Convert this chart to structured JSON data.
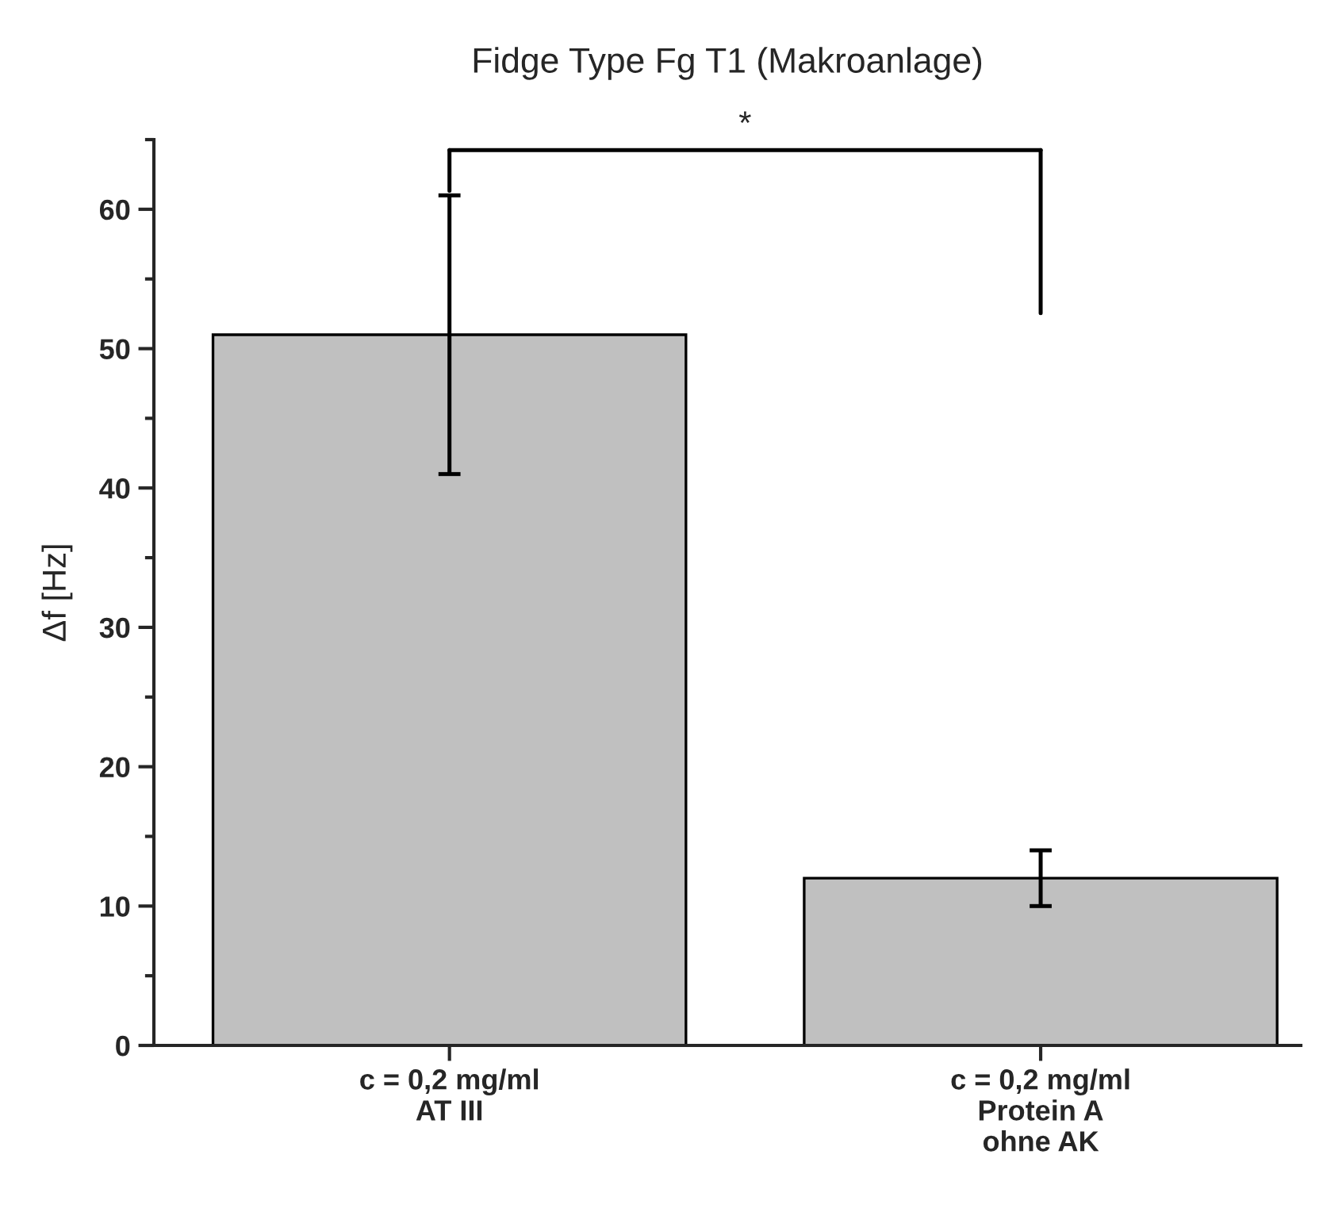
{
  "chart_data": {
    "type": "bar",
    "title": "Fidge Type Fg T1 (Makroanlage)",
    "ylabel": "Δf [Hz]",
    "categories": [
      "c = 0,2 mg/ml\nAT III",
      "c = 0,2 mg/ml\nProtein A\nohne AK"
    ],
    "values": [
      51,
      12
    ],
    "errors": [
      10,
      2
    ],
    "color": "#c0c0c0",
    "ylim": [
      0,
      65
    ],
    "yticks": [
      0,
      10,
      20,
      30,
      40,
      50,
      60
    ],
    "annotations": [
      "*"
    ]
  }
}
